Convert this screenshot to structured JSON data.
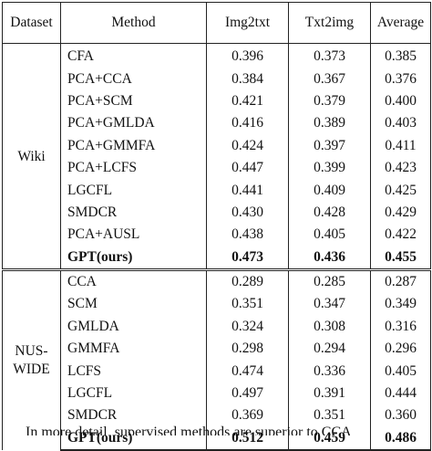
{
  "table": {
    "headers": [
      "Dataset",
      "Method",
      "Img2txt",
      "Txt2img",
      "Average"
    ],
    "groups": [
      {
        "dataset": "Wiki",
        "rows": [
          {
            "method": "CFA",
            "img2txt": "0.396",
            "txt2img": "0.373",
            "average": "0.385",
            "bold": false
          },
          {
            "method": "PCA+CCA",
            "img2txt": "0.384",
            "txt2img": "0.367",
            "average": "0.376",
            "bold": false
          },
          {
            "method": "PCA+SCM",
            "img2txt": "0.421",
            "txt2img": "0.379",
            "average": "0.400",
            "bold": false
          },
          {
            "method": "PCA+GMLDA",
            "img2txt": "0.416",
            "txt2img": "0.389",
            "average": "0.403",
            "bold": false
          },
          {
            "method": "PCA+GMMFA",
            "img2txt": "0.424",
            "txt2img": "0.397",
            "average": "0.411",
            "bold": false
          },
          {
            "method": "PCA+LCFS",
            "img2txt": "0.447",
            "txt2img": "0.399",
            "average": "0.423",
            "bold": false
          },
          {
            "method": "LGCFL",
            "img2txt": "0.441",
            "txt2img": "0.409",
            "average": "0.425",
            "bold": false
          },
          {
            "method": "SMDCR",
            "img2txt": "0.430",
            "txt2img": "0.428",
            "average": "0.429",
            "bold": false
          },
          {
            "method": "PCA+AUSL",
            "img2txt": "0.438",
            "txt2img": "0.405",
            "average": "0.422",
            "bold": false
          },
          {
            "method": "GPT(ours)",
            "img2txt": "0.473",
            "txt2img": "0.436",
            "average": "0.455",
            "bold": true
          }
        ]
      },
      {
        "dataset": "NUS-WIDE",
        "rows": [
          {
            "method": "CCA",
            "img2txt": "0.289",
            "txt2img": "0.285",
            "average": "0.287",
            "bold": false
          },
          {
            "method": "SCM",
            "img2txt": "0.351",
            "txt2img": "0.347",
            "average": "0.349",
            "bold": false
          },
          {
            "method": "GMLDA",
            "img2txt": "0.324",
            "txt2img": "0.308",
            "average": "0.316",
            "bold": false
          },
          {
            "method": "GMMFA",
            "img2txt": "0.298",
            "txt2img": "0.294",
            "average": "0.296",
            "bold": false
          },
          {
            "method": "LCFS",
            "img2txt": "0.474",
            "txt2img": "0.336",
            "average": "0.405",
            "bold": false
          },
          {
            "method": "LGCFL",
            "img2txt": "0.497",
            "txt2img": "0.391",
            "average": "0.444",
            "bold": false
          },
          {
            "method": "SMDCR",
            "img2txt": "0.369",
            "txt2img": "0.351",
            "average": "0.360",
            "bold": false
          },
          {
            "method": "GPT(ours)",
            "img2txt": "0.512",
            "txt2img": "0.459",
            "average": "0.486",
            "bold": true
          }
        ]
      }
    ]
  },
  "caption_fragment": "In more detail, supervised methods are superior to CCA"
}
